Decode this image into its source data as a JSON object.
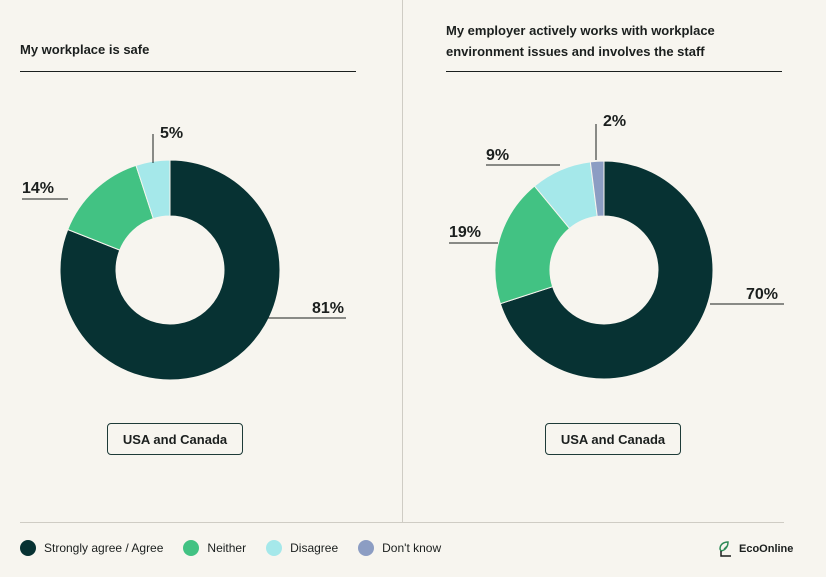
{
  "colors": {
    "strongly_agree": "#073233",
    "neither": "#42c283",
    "disagree": "#a5e8ea",
    "dont_know": "#8c9dc3"
  },
  "chart_data": [
    {
      "type": "pie",
      "title": "My workplace is safe",
      "region": "USA and Canada",
      "categories": [
        "Strongly agree / Agree",
        "Neither",
        "Disagree"
      ],
      "values": [
        81,
        14,
        5
      ],
      "labels": [
        "81%",
        "14%",
        "5%"
      ]
    },
    {
      "type": "pie",
      "title": "My employer actively works with workplace environment issues and involves the staff",
      "title_lines": [
        "My employer actively works with workplace",
        "environment issues and involves the staff"
      ],
      "region": "USA and Canada",
      "categories": [
        "Strongly agree / Agree",
        "Neither",
        "Disagree",
        "Don't know"
      ],
      "values": [
        70,
        19,
        9,
        2
      ],
      "labels": [
        "70%",
        "19%",
        "9%",
        "2%"
      ]
    }
  ],
  "legend": [
    {
      "label": "Strongly agree / Agree",
      "color": "#073233"
    },
    {
      "label": "Neither",
      "color": "#42c283"
    },
    {
      "label": "Disagree",
      "color": "#a5e8ea"
    },
    {
      "label": "Don't know",
      "color": "#8c9dc3"
    }
  ],
  "brand": {
    "name": "EcoOnline",
    "icon": "ecoonline-logo-icon"
  }
}
